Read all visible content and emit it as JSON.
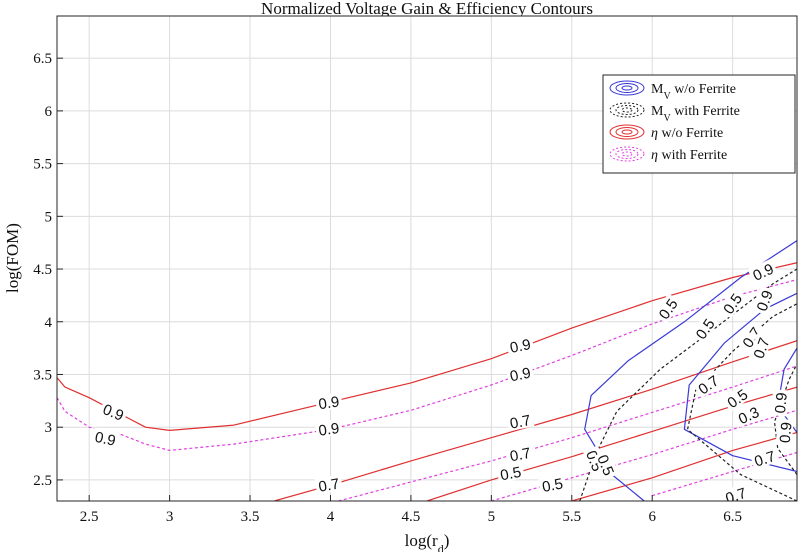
{
  "chart_data": {
    "type": "line",
    "title": "Normalized Voltage Gain & Efficiency Contours",
    "xlabel": "log(r_d)",
    "xlabel_main": "log(r",
    "xlabel_sub": "d",
    "xlabel_close": ")",
    "ylabel": "log(FOM)",
    "xlim": [
      2.3,
      6.9
    ],
    "ylim": [
      2.3,
      6.9
    ],
    "xticks": [
      "2.5",
      "3",
      "3.5",
      "4",
      "4.5",
      "5",
      "5.5",
      "6",
      "6.5"
    ],
    "xtick_values": [
      2.5,
      3,
      3.5,
      4,
      4.5,
      5,
      5.5,
      6,
      6.5
    ],
    "yticks": [
      "2.5",
      "3",
      "3.5",
      "4",
      "4.5",
      "5",
      "5.5",
      "6",
      "6.5"
    ],
    "ytick_values": [
      2.5,
      3,
      3.5,
      4,
      4.5,
      5,
      5.5,
      6,
      6.5
    ],
    "grid": true,
    "legend_position": "top-right",
    "legend": [
      {
        "label_main": "M",
        "label_sub": "V",
        "label_rest": "  w/o  Ferrite",
        "color": "#3a3ad6",
        "dashed": false
      },
      {
        "label_main": "M",
        "label_sub": "V",
        "label_rest": "  with  Ferrite",
        "color": "#222222",
        "dashed": true
      },
      {
        "label_main": "η",
        "label_sub": "",
        "label_rest": "  w/o  Ferrite",
        "color": "#e03030",
        "dashed": false
      },
      {
        "label_main": "η",
        "label_sub": "",
        "label_rest": "  with  Ferrite",
        "color": "#e040e0",
        "dashed": true
      }
    ],
    "series": [
      {
        "name": "eta w/o Ferrite 0.9",
        "color": "#e03030",
        "dashed": false,
        "x": [
          2.3,
          2.35,
          2.5,
          2.7,
          2.85,
          3.0,
          3.4,
          4.0,
          4.5,
          5.0,
          5.5,
          6.0,
          6.5,
          6.9
        ],
        "y": [
          3.47,
          3.38,
          3.28,
          3.12,
          3.0,
          2.97,
          3.02,
          3.24,
          3.42,
          3.65,
          3.94,
          4.2,
          4.42,
          4.56
        ]
      },
      {
        "name": "eta w/o Ferrite 0.7",
        "color": "#e03030",
        "dashed": false,
        "x": [
          3.65,
          4.0,
          4.5,
          5.0,
          5.5,
          6.0,
          6.5,
          6.9
        ],
        "y": [
          2.3,
          2.45,
          2.68,
          2.9,
          3.12,
          3.36,
          3.62,
          3.82
        ]
      },
      {
        "name": "eta w/o Ferrite 0.5",
        "color": "#e03030",
        "dashed": false,
        "x": [
          4.6,
          5.0,
          5.5,
          6.0,
          6.5,
          6.9
        ],
        "y": [
          2.3,
          2.5,
          2.72,
          2.96,
          3.2,
          3.38
        ]
      },
      {
        "name": "eta w/o Ferrite 0.3",
        "color": "#e03030",
        "dashed": false,
        "x": [
          5.5,
          6.0,
          6.5,
          6.9
        ],
        "y": [
          2.3,
          2.52,
          2.78,
          2.95
        ]
      },
      {
        "name": "eta with Ferrite 0.9",
        "color": "#e040e0",
        "dashed": true,
        "x": [
          2.3,
          2.35,
          2.5,
          2.7,
          2.85,
          3.0,
          3.4,
          4.0,
          4.5,
          5.0,
          5.5,
          6.0,
          6.5,
          6.9
        ],
        "y": [
          3.28,
          3.15,
          3.0,
          2.93,
          2.84,
          2.78,
          2.84,
          2.98,
          3.16,
          3.4,
          3.68,
          3.98,
          4.24,
          4.4
        ]
      },
      {
        "name": "eta with Ferrite 0.7",
        "color": "#e040e0",
        "dashed": true,
        "x": [
          4.05,
          4.5,
          5.0,
          5.5,
          6.0,
          6.5,
          6.9
        ],
        "y": [
          2.3,
          2.48,
          2.68,
          2.9,
          3.14,
          3.38,
          3.58
        ]
      },
      {
        "name": "eta with Ferrite 0.5",
        "color": "#e040e0",
        "dashed": true,
        "x": [
          5.0,
          5.5,
          6.0,
          6.5,
          6.9
        ],
        "y": [
          2.3,
          2.52,
          2.74,
          2.98,
          3.16
        ]
      },
      {
        "name": "eta with Ferrite 0.3",
        "color": "#e040e0",
        "dashed": true,
        "x": [
          6.0,
          6.5,
          6.9
        ],
        "y": [
          2.35,
          2.58,
          2.76
        ]
      },
      {
        "name": "Mv w/o Ferrite 0.5",
        "color": "#3a3ad6",
        "dashed": false,
        "x": [
          5.95,
          5.75,
          5.58,
          5.62,
          5.85,
          6.2,
          6.55,
          6.9
        ],
        "y": [
          2.3,
          2.55,
          2.98,
          3.3,
          3.63,
          4.0,
          4.42,
          4.77
        ]
      },
      {
        "name": "Mv w/o Ferrite 0.7",
        "color": "#3a3ad6",
        "dashed": false,
        "x": [
          6.9,
          6.5,
          6.2,
          6.23,
          6.45,
          6.7,
          6.9
        ],
        "y": [
          2.58,
          2.73,
          2.98,
          3.4,
          3.8,
          4.12,
          4.27
        ]
      },
      {
        "name": "Mv w/o Ferrite 0.9",
        "color": "#3a3ad6",
        "dashed": false,
        "x": [
          6.9,
          6.78,
          6.82,
          6.9
        ],
        "y": [
          2.95,
          3.2,
          3.55,
          3.75
        ]
      },
      {
        "name": "Mv with Ferrite 0.5",
        "color": "#222222",
        "dashed": true,
        "x": [
          5.55,
          5.65,
          5.78,
          6.05,
          6.4,
          6.75,
          6.9
        ],
        "y": [
          2.3,
          2.75,
          3.15,
          3.55,
          3.95,
          4.36,
          4.5
        ]
      },
      {
        "name": "Mv with Ferrite 0.7",
        "color": "#222222",
        "dashed": true,
        "x": [
          6.9,
          6.55,
          6.22,
          6.27,
          6.5,
          6.75,
          6.9
        ],
        "y": [
          2.3,
          2.55,
          2.98,
          3.35,
          3.72,
          4.05,
          4.17
        ]
      },
      {
        "name": "Mv with Ferrite 0.9",
        "color": "#222222",
        "dashed": true,
        "x": [
          6.9,
          6.78,
          6.76,
          6.85,
          6.9
        ],
        "y": [
          2.55,
          2.8,
          3.05,
          3.45,
          3.6
        ]
      }
    ],
    "contour_labels": [
      {
        "text": "0.9",
        "x": 2.65,
        "y": 3.14,
        "angle": 22
      },
      {
        "text": "0.9",
        "x": 2.6,
        "y": 2.89,
        "angle": 12
      },
      {
        "text": "0.9",
        "x": 3.99,
        "y": 3.23,
        "angle": -8
      },
      {
        "text": "0.9",
        "x": 3.99,
        "y": 2.98,
        "angle": -8
      },
      {
        "text": "0.7",
        "x": 3.99,
        "y": 2.45,
        "angle": -10
      },
      {
        "text": "0.9",
        "x": 5.18,
        "y": 3.77,
        "angle": -12
      },
      {
        "text": "0.9",
        "x": 5.18,
        "y": 3.5,
        "angle": -12
      },
      {
        "text": "0.7",
        "x": 5.18,
        "y": 3.05,
        "angle": -11
      },
      {
        "text": "0.7",
        "x": 5.18,
        "y": 2.74,
        "angle": -11
      },
      {
        "text": "0.5",
        "x": 5.12,
        "y": 2.56,
        "angle": -11
      },
      {
        "text": "0.5",
        "x": 5.38,
        "y": 2.45,
        "angle": -11
      },
      {
        "text": "0.5",
        "x": 5.64,
        "y": 2.68,
        "angle": 68
      },
      {
        "text": "0.5",
        "x": 5.71,
        "y": 2.64,
        "angle": 68
      },
      {
        "text": "0.5",
        "x": 6.1,
        "y": 4.12,
        "angle": -55
      },
      {
        "text": "0.5",
        "x": 6.33,
        "y": 3.93,
        "angle": -55
      },
      {
        "text": "0.5",
        "x": 6.5,
        "y": 4.17,
        "angle": -55
      },
      {
        "text": "0.9",
        "x": 6.69,
        "y": 4.47,
        "angle": -25
      },
      {
        "text": "0.9",
        "x": 6.7,
        "y": 4.2,
        "angle": -70
      },
      {
        "text": "0.7",
        "x": 6.62,
        "y": 3.85,
        "angle": -55
      },
      {
        "text": "0.7",
        "x": 6.68,
        "y": 3.75,
        "angle": -70
      },
      {
        "text": "0.7",
        "x": 6.35,
        "y": 3.4,
        "angle": -35
      },
      {
        "text": "0.5",
        "x": 6.53,
        "y": 3.27,
        "angle": -35
      },
      {
        "text": "0.3",
        "x": 6.6,
        "y": 3.11,
        "angle": -25
      },
      {
        "text": "0.9",
        "x": 6.8,
        "y": 3.23,
        "angle": -85
      },
      {
        "text": "0.9",
        "x": 6.83,
        "y": 2.95,
        "angle": -85
      },
      {
        "text": "0.7",
        "x": 6.7,
        "y": 2.7,
        "angle": -18
      },
      {
        "text": "0.7",
        "x": 6.52,
        "y": 2.35,
        "angle": -18
      }
    ]
  }
}
